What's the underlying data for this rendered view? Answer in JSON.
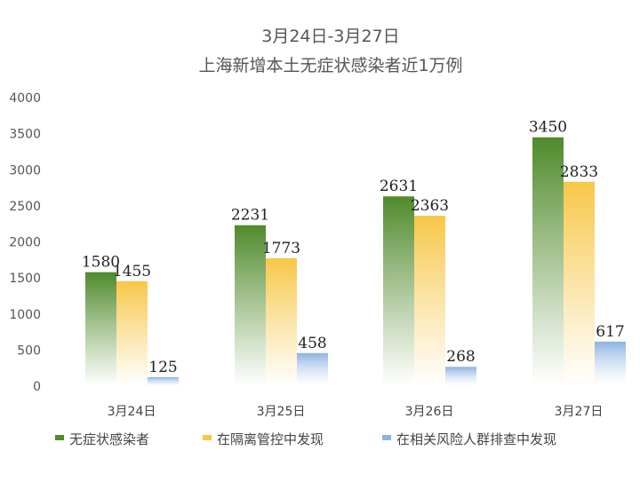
{
  "chart_data": {
    "type": "bar",
    "title": "3月24日-3月27日",
    "subtitle": "上海新增本土无症状感染者近1万例",
    "categories": [
      "3月24日",
      "3月25日",
      "3月26日",
      "3月27日"
    ],
    "series": [
      {
        "name": "无症状感染者",
        "values": [
          1580,
          2231,
          2631,
          3450
        ],
        "color": "#4f8a2b"
      },
      {
        "name": "在隔离管控中发现",
        "values": [
          1455,
          1773,
          2363,
          2833
        ],
        "color": "#f7c748"
      },
      {
        "name": "在相关风险人群排查中发现",
        "values": [
          125,
          458,
          268,
          617
        ],
        "color": "#8db3e2"
      }
    ],
    "ylim": [
      0,
      4000
    ],
    "yticks": [
      "0",
      "500",
      "1000",
      "1500",
      "2000",
      "2500",
      "3000",
      "3500",
      "4000"
    ],
    "grid": false,
    "legend": "bottom"
  }
}
